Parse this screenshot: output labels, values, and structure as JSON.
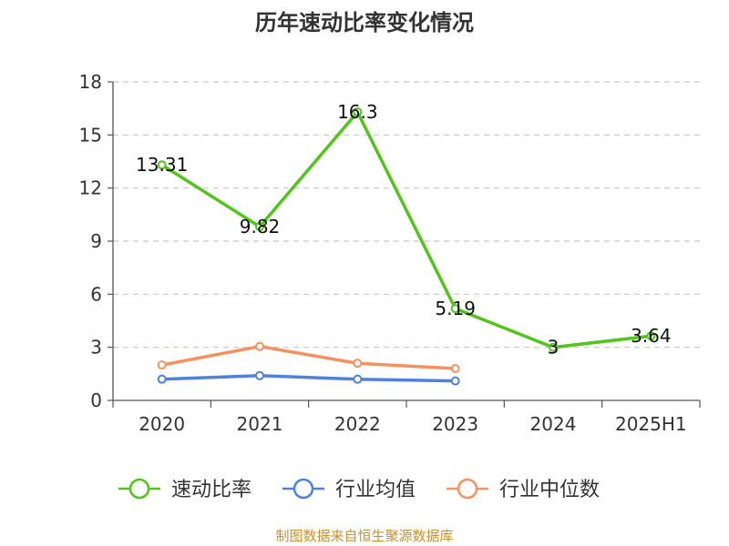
{
  "chart_data": {
    "type": "line",
    "title": "历年速动比率变化情况",
    "categories": [
      "2020",
      "2021",
      "2022",
      "2023",
      "2024",
      "2025H1"
    ],
    "ylim": [
      0,
      18
    ],
    "yticks": [
      0,
      3,
      6,
      9,
      12,
      15,
      18
    ],
    "grid": true,
    "legend_position": "bottom",
    "series": [
      {
        "name": "速动比率",
        "color": "#52c41a",
        "values": [
          13.31,
          9.82,
          16.3,
          5.19,
          3,
          3.64
        ],
        "labels": [
          "13.31",
          "9.82",
          "16.3",
          "5.19",
          "3",
          "3.64"
        ]
      },
      {
        "name": "行业均值",
        "color": "#4f81e0",
        "values": [
          1.2,
          1.4,
          1.2,
          1.1,
          null,
          null
        ]
      },
      {
        "name": "行业中位数",
        "color": "#f5915e",
        "values": [
          2.0,
          3.05,
          2.1,
          1.8,
          null,
          null
        ]
      }
    ],
    "source": "制图数据来自恒生聚源数据库"
  }
}
